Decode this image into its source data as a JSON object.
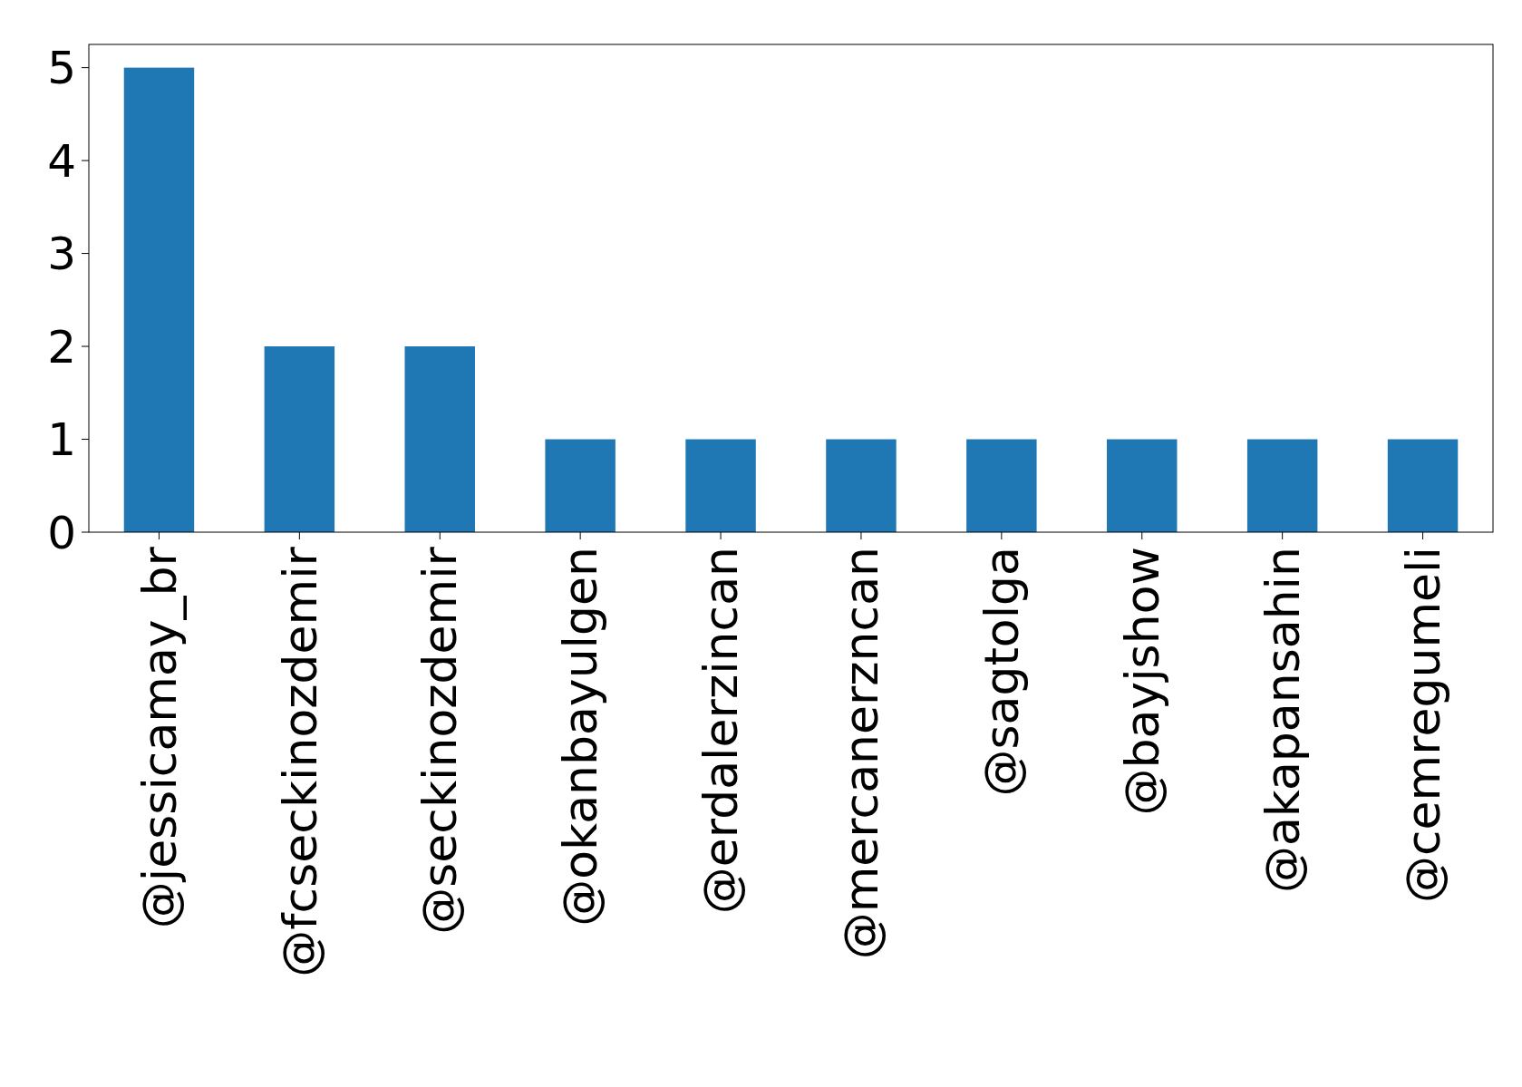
{
  "chart_data": {
    "type": "bar",
    "categories": [
      "@jessicamay_br",
      "@fcseckinozdemir",
      "@seckinozdemir",
      "@okanbayulgen",
      "@erdalerzincan",
      "@mercanerzncan",
      "@sagtolga",
      "@bayjshow",
      "@akapansahin",
      "@cemregumeli"
    ],
    "values": [
      5,
      2,
      2,
      1,
      1,
      1,
      1,
      1,
      1,
      1
    ],
    "color": "#1f77b4",
    "ylim": [
      0,
      5.25
    ],
    "yticks": [
      0,
      1,
      2,
      3,
      4,
      5
    ],
    "grid": false
  }
}
